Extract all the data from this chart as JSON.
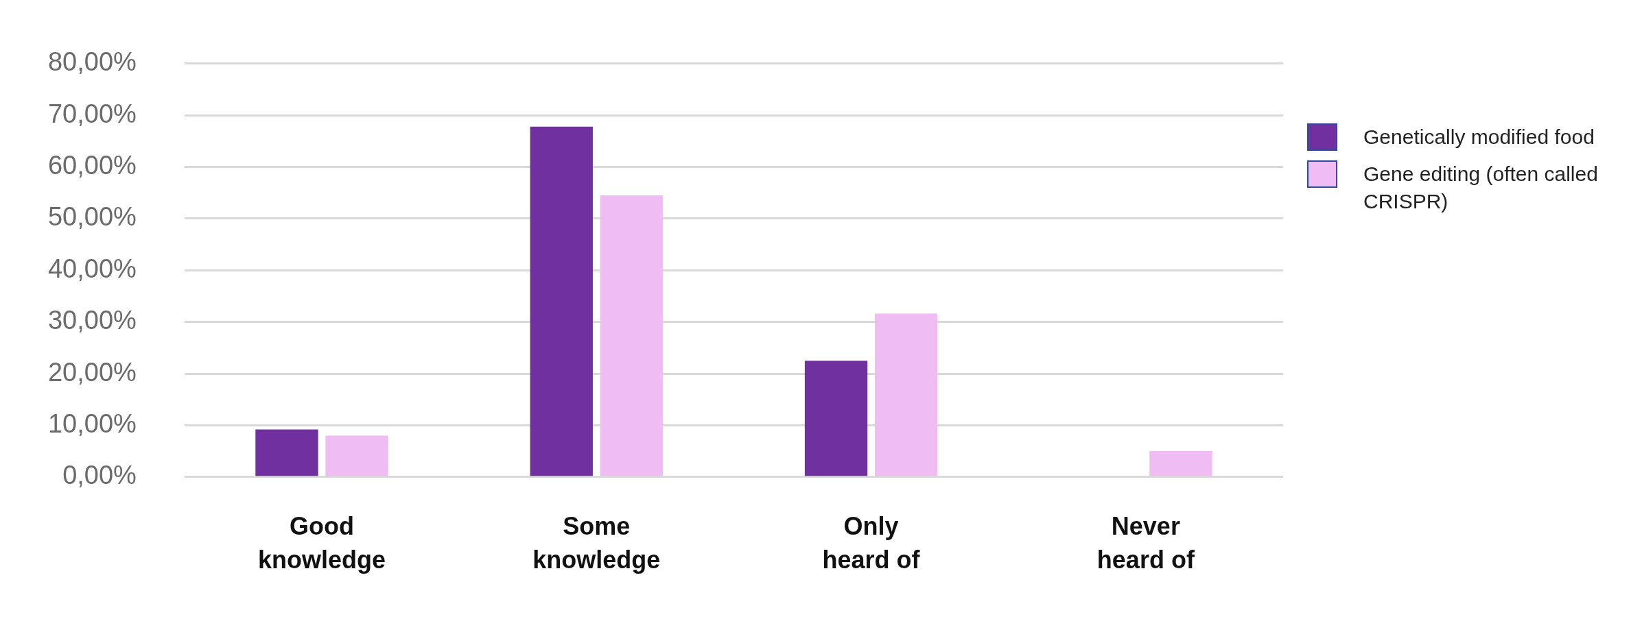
{
  "chart_data": {
    "type": "bar",
    "categories": [
      "Good knowledge",
      "Some knowledge",
      "Only heard of",
      "Never heard of"
    ],
    "series": [
      {
        "name": "Genetically modified food",
        "color": "#7030a0",
        "values": [
          9.2,
          67.8,
          22.5,
          0
        ]
      },
      {
        "name": "Gene editing (often called CRISPR)",
        "color": "#efbcf3",
        "values": [
          8.0,
          54.5,
          31.6,
          5.0
        ]
      }
    ],
    "ylim": [
      0,
      80
    ],
    "yticks": [
      {
        "value": 0,
        "label": "0,00%"
      },
      {
        "value": 10,
        "label": "10,00%"
      },
      {
        "value": 20,
        "label": "20,00%"
      },
      {
        "value": 30,
        "label": "30,00%"
      },
      {
        "value": 40,
        "label": "40,00%"
      },
      {
        "value": 50,
        "label": "50,00%"
      },
      {
        "value": 60,
        "label": "60,00%"
      },
      {
        "value": 70,
        "label": "70,00%"
      },
      {
        "value": 80,
        "label": "80,00%"
      }
    ],
    "grid": "y",
    "legend": "right"
  }
}
